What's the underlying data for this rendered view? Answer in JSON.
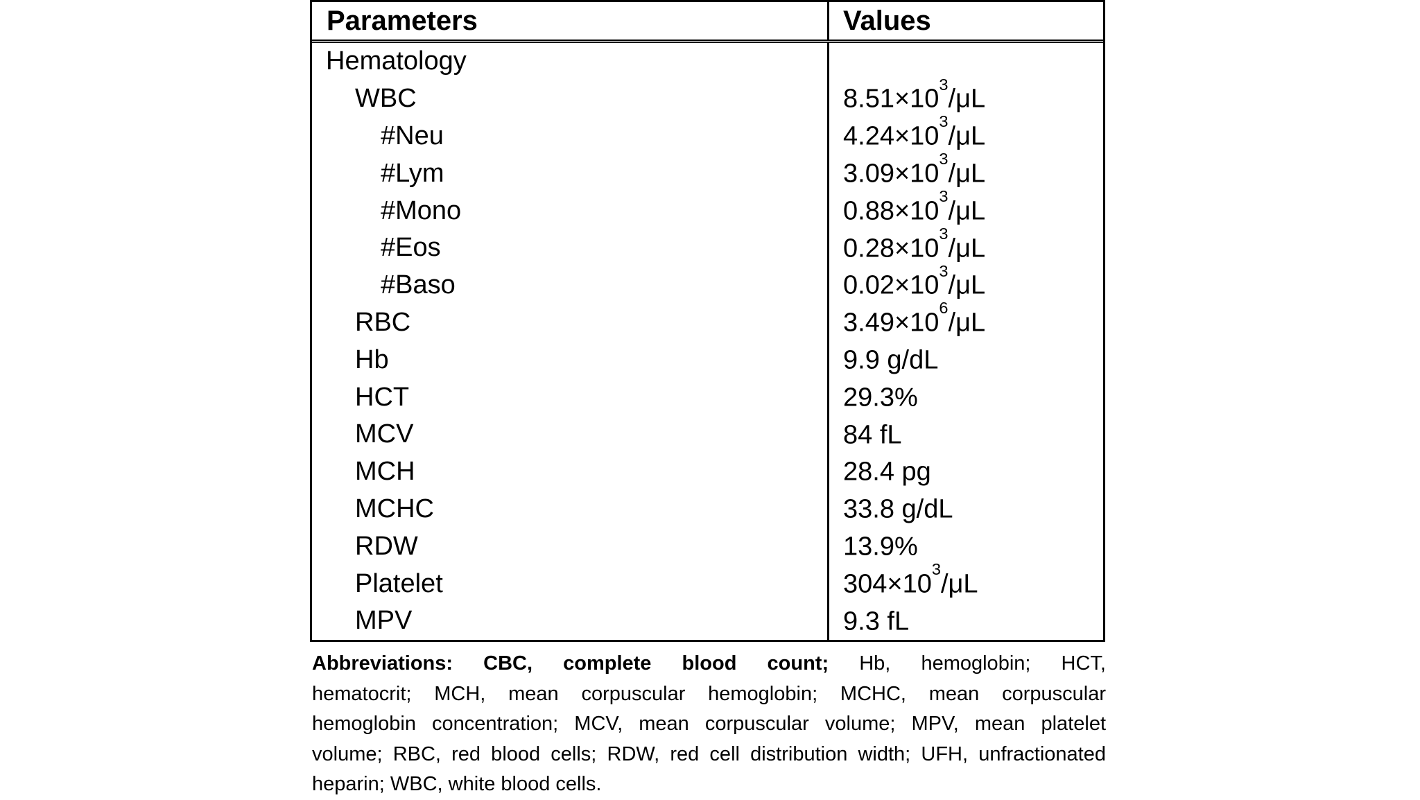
{
  "page": {
    "background_color": "#ffffff",
    "text_color": "#000000",
    "border_color": "#000000"
  },
  "table": {
    "headers": {
      "parameters": "Parameters",
      "values": "Values"
    },
    "rows": [
      {
        "param": "Hematology",
        "indent": 0,
        "value_pre": "",
        "value_sup": "",
        "value_post": ""
      },
      {
        "param": "WBC",
        "indent": 1,
        "value_pre": "8.51×10",
        "value_sup": "3",
        "value_post": "/μL"
      },
      {
        "param": "#Neu",
        "indent": 2,
        "value_pre": "4.24×10",
        "value_sup": "3",
        "value_post": "/μL"
      },
      {
        "param": "#Lym",
        "indent": 2,
        "value_pre": "3.09×10",
        "value_sup": "3",
        "value_post": "/μL"
      },
      {
        "param": "#Mono",
        "indent": 2,
        "value_pre": "0.88×10",
        "value_sup": "3",
        "value_post": "/μL"
      },
      {
        "param": "#Eos",
        "indent": 2,
        "value_pre": "0.28×10",
        "value_sup": "3",
        "value_post": "/μL"
      },
      {
        "param": "#Baso",
        "indent": 2,
        "value_pre": "0.02×10",
        "value_sup": "3",
        "value_post": "/μL"
      },
      {
        "param": "RBC",
        "indent": 1,
        "value_pre": "3.49×10",
        "value_sup": "6",
        "value_post": "/μL"
      },
      {
        "param": "Hb",
        "indent": 1,
        "value_pre": "9.9 g/dL",
        "value_sup": "",
        "value_post": ""
      },
      {
        "param": "HCT",
        "indent": 1,
        "value_pre": "29.3%",
        "value_sup": "",
        "value_post": ""
      },
      {
        "param": "MCV",
        "indent": 1,
        "value_pre": "84 fL",
        "value_sup": "",
        "value_post": ""
      },
      {
        "param": "MCH",
        "indent": 1,
        "value_pre": "28.4 pg",
        "value_sup": "",
        "value_post": ""
      },
      {
        "param": "MCHC",
        "indent": 1,
        "value_pre": "33.8 g/dL",
        "value_sup": "",
        "value_post": ""
      },
      {
        "param": "RDW",
        "indent": 1,
        "value_pre": "13.9%",
        "value_sup": "",
        "value_post": ""
      },
      {
        "param": "Platelet",
        "indent": 1,
        "value_pre": "304×10",
        "value_sup": "3",
        "value_post": "/μL"
      },
      {
        "param": "MPV",
        "indent": 1,
        "value_pre": "9.3 fL",
        "value_sup": "",
        "value_post": ""
      }
    ]
  },
  "footnote": {
    "lines": [
      {
        "bold": "Abbreviations: CBC, complete blood count;",
        "text": " Hb, hemoglobin; HCT,"
      },
      {
        "bold": "",
        "text": "hematocrit; MCH, mean corpuscular hemoglobin; MCHC, mean corpuscular"
      },
      {
        "bold": "",
        "text": "hemoglobin concentration; MCV, mean corpuscular volume; MPV, mean platelet"
      },
      {
        "bold": "",
        "text": "volume; RBC, red blood cells; RDW, red cell distribution width; UFH, unfractionated"
      },
      {
        "bold": "",
        "text": "heparin; WBC, white blood cells."
      }
    ]
  }
}
